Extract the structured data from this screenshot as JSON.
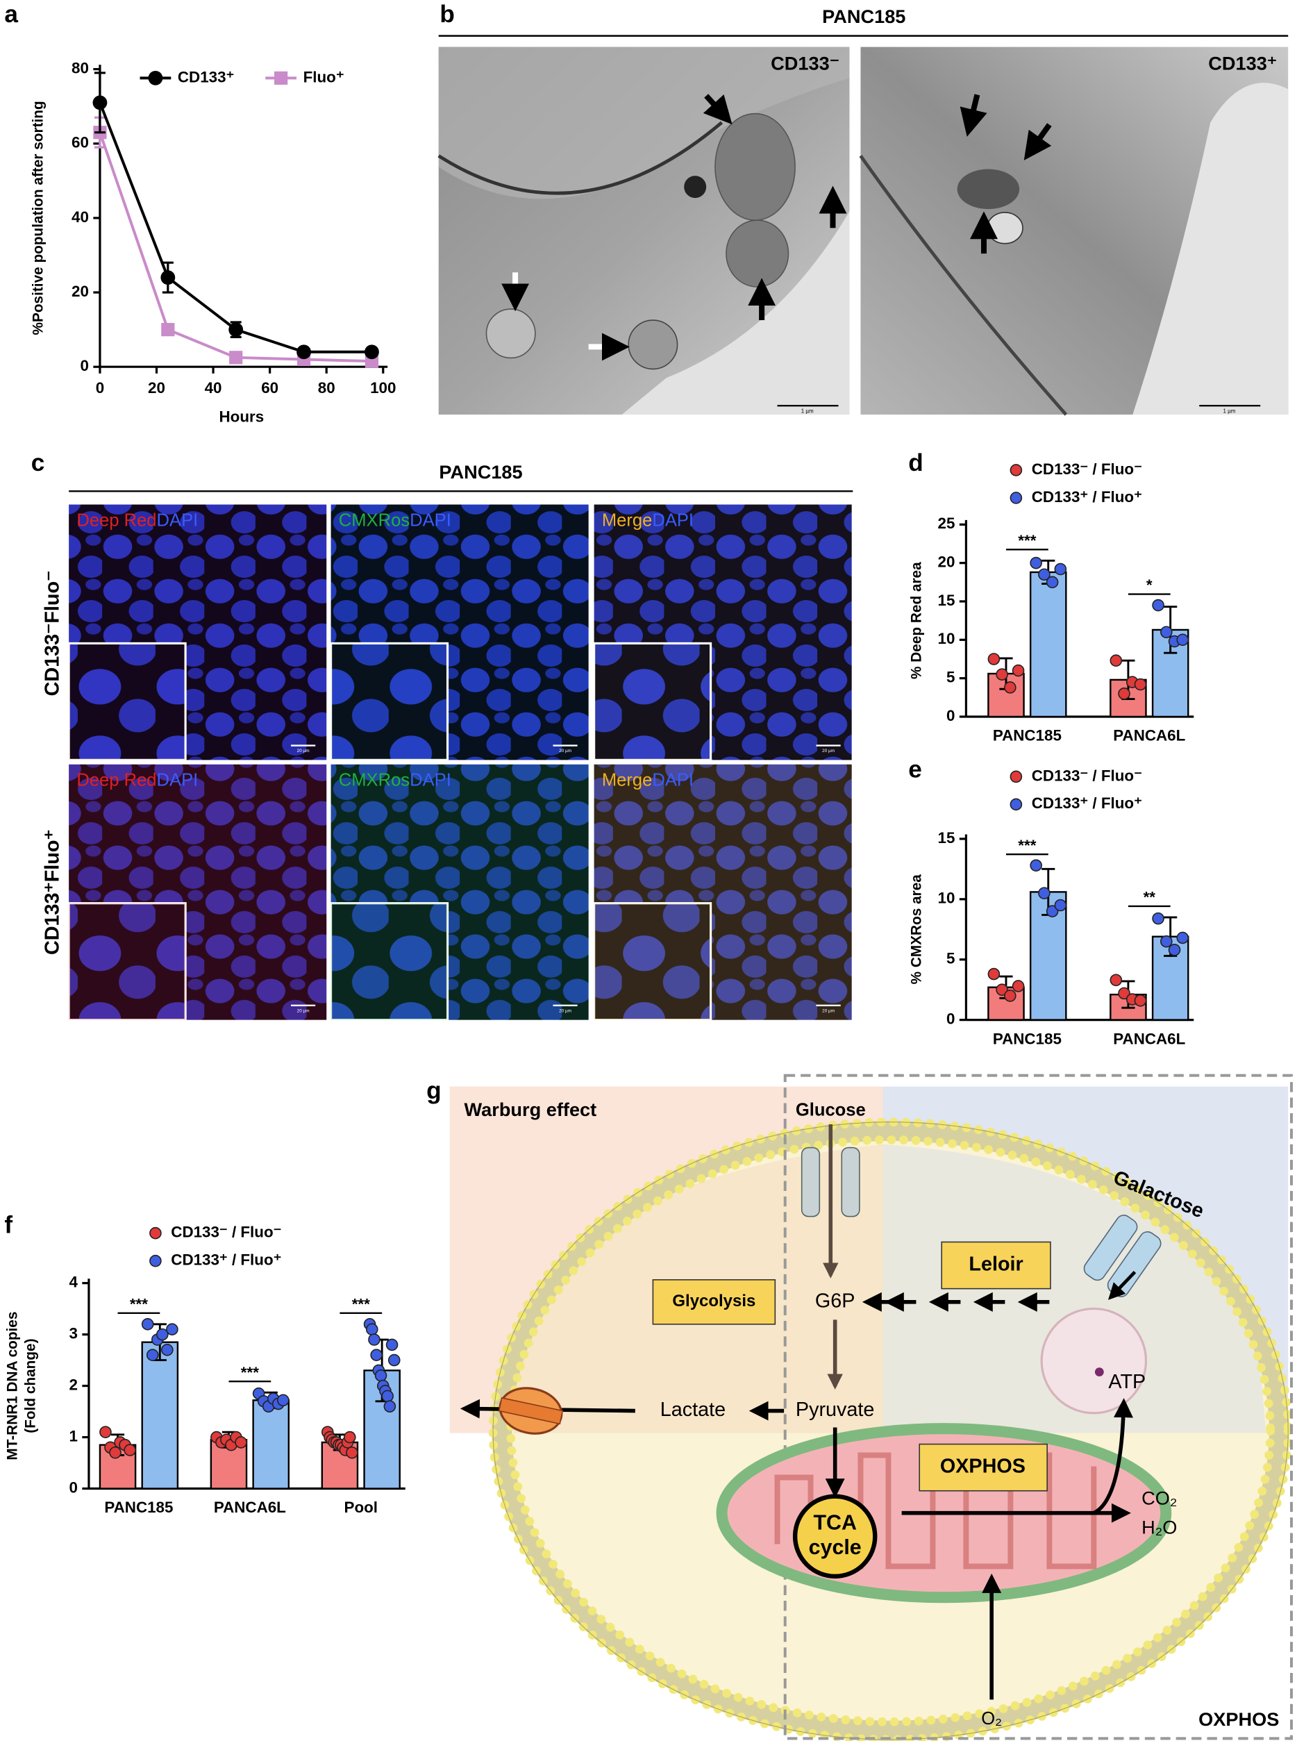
{
  "panel_labels": [
    "a",
    "b",
    "c",
    "d",
    "e",
    "f",
    "g"
  ],
  "chart_data": [
    {
      "type": "line",
      "xlabel": "Hours",
      "ylabel": "%Positive population after sorting",
      "x": [
        0,
        24,
        48,
        72,
        96
      ],
      "series": [
        {
          "name": "CD133⁺",
          "color": "#000000",
          "marker": "circle",
          "values": [
            71,
            24,
            10,
            4,
            4
          ],
          "errors": [
            8,
            4,
            2,
            0.5,
            0.5
          ]
        },
        {
          "name": "Fluo⁺",
          "color": "#c98bc9",
          "marker": "square",
          "values": [
            63,
            10,
            2.5,
            2,
            1.5
          ],
          "errors": [
            4,
            1,
            0.5,
            0.5,
            0.5
          ]
        }
      ],
      "xlim": [
        0,
        100
      ],
      "xticks": [
        0,
        20,
        40,
        60,
        80,
        100
      ],
      "ylim": [
        0,
        80
      ],
      "yticks": [
        0,
        20,
        40,
        60,
        80
      ]
    },
    {
      "type": "bar",
      "ylabel": "% Deep Red area",
      "categories": [
        "PANC185",
        "PANCA6L"
      ],
      "series": [
        {
          "name": "CD133⁻ / Fluo⁻",
          "color": "#f27c7c",
          "dot_color": "#e03a3a",
          "values": [
            5.6,
            4.8
          ],
          "errors": [
            2,
            2.5
          ],
          "points": [
            [
              7.5,
              5.5,
              3.8,
              6
            ],
            [
              7.3,
              3,
              4.5,
              4.2
            ]
          ]
        },
        {
          "name": "CD133⁺ / Fluo⁺",
          "color": "#8fbcee",
          "dot_color": "#3f5fe0",
          "values": [
            18.8,
            11.3
          ],
          "errors": [
            1.5,
            3
          ],
          "points": [
            [
              20,
              18.5,
              17.5,
              19.2
            ],
            [
              14.5,
              11,
              9.8,
              10
            ]
          ]
        }
      ],
      "significance": [
        "***",
        "*"
      ],
      "ylim": [
        0,
        25
      ],
      "yticks": [
        0,
        5,
        10,
        15,
        20,
        25
      ]
    },
    {
      "type": "bar",
      "ylabel": "% CMXRos area",
      "categories": [
        "PANC185",
        "PANCA6L"
      ],
      "series": [
        {
          "name": "CD133⁻ / Fluo⁻",
          "color": "#f27c7c",
          "dot_color": "#e03a3a",
          "values": [
            2.7,
            2.1
          ],
          "errors": [
            0.9,
            1.1
          ],
          "points": [
            [
              3.8,
              2.5,
              2,
              2.8
            ],
            [
              3.3,
              2.2,
              1.7,
              1.6
            ]
          ]
        },
        {
          "name": "CD133⁺ / Fluo⁺",
          "color": "#8fbcee",
          "dot_color": "#3f5fe0",
          "values": [
            10.6,
            6.9
          ],
          "errors": [
            1.9,
            1.6
          ],
          "points": [
            [
              12.8,
              10.5,
              9,
              9.5
            ],
            [
              8.4,
              6.5,
              5.8,
              6.8
            ]
          ]
        }
      ],
      "significance": [
        "***",
        "**"
      ],
      "ylim": [
        0,
        15
      ],
      "yticks": [
        0,
        5,
        10,
        15
      ]
    },
    {
      "type": "bar",
      "ylabel": [
        "MT-RNR1 DNA copies",
        "(Fold change)"
      ],
      "categories": [
        "PANC185",
        "PANCA6L",
        "Pool"
      ],
      "series": [
        {
          "name": "CD133⁻ / Fluo⁻",
          "color": "#f27c7c",
          "dot_color": "#e03a3a",
          "values": [
            0.85,
            0.95,
            0.9
          ],
          "errors": [
            0.2,
            0.15,
            0.15
          ],
          "points": [
            [
              1.1,
              0.8,
              0.7,
              0.9,
              0.85,
              0.75
            ],
            [
              1.0,
              0.9,
              0.95,
              0.85,
              1.0,
              0.9
            ],
            [
              1.1,
              1.0,
              0.95,
              0.9,
              0.9,
              0.85,
              0.85,
              0.8,
              0.75,
              0.9,
              1.0,
              0.7
            ]
          ]
        },
        {
          "name": "CD133⁺ / Fluo⁺",
          "color": "#8fbcee",
          "dot_color": "#3f5fe0",
          "values": [
            2.85,
            1.72,
            2.3
          ],
          "errors": [
            0.35,
            0.15,
            0.6
          ],
          "points": [
            [
              3.2,
              2.6,
              2.9,
              3.0,
              2.7,
              3.1
            ],
            [
              1.85,
              1.7,
              1.6,
              1.75,
              1.65,
              1.72
            ],
            [
              3.2,
              3.1,
              2.9,
              2.6,
              2.3,
              2.2,
              2.0,
              1.9,
              1.8,
              1.6,
              2.8,
              2.5
            ]
          ]
        }
      ],
      "significance": [
        "***",
        "***",
        "***"
      ],
      "ylim": [
        0,
        4
      ],
      "yticks": [
        0,
        1,
        2,
        3,
        4
      ]
    }
  ],
  "panel_b": {
    "title": "PANC185",
    "image_labels": [
      "CD133⁻",
      "CD133⁺"
    ],
    "scale_bar": "1 µm"
  },
  "panel_c": {
    "title": "PANC185",
    "row_labels": [
      "CD133⁻Fluo⁻",
      "CD133⁺Fluo⁺"
    ],
    "column_labels": [
      {
        "stain": "Deep Red",
        "dapi": "DAPI"
      },
      {
        "stain": "CMXRos",
        "dapi": "DAPI"
      },
      {
        "stain": "Merge",
        "dapi": "DAPI"
      }
    ],
    "scale_bar": "20 µm"
  },
  "panel_g": {
    "regions": [
      "Warburg effect",
      "OXPHOS"
    ],
    "inputs": [
      "Glucose",
      "Galactose",
      "O₂"
    ],
    "pathways": [
      "Glycolysis",
      "Leloir",
      "OXPHOS"
    ],
    "metabolites": [
      "G6P",
      "Pyruvate",
      "Lactate"
    ],
    "tca": [
      "TCA",
      "cycle"
    ],
    "products": [
      "ATP",
      "CO₂",
      "H₂O"
    ]
  }
}
